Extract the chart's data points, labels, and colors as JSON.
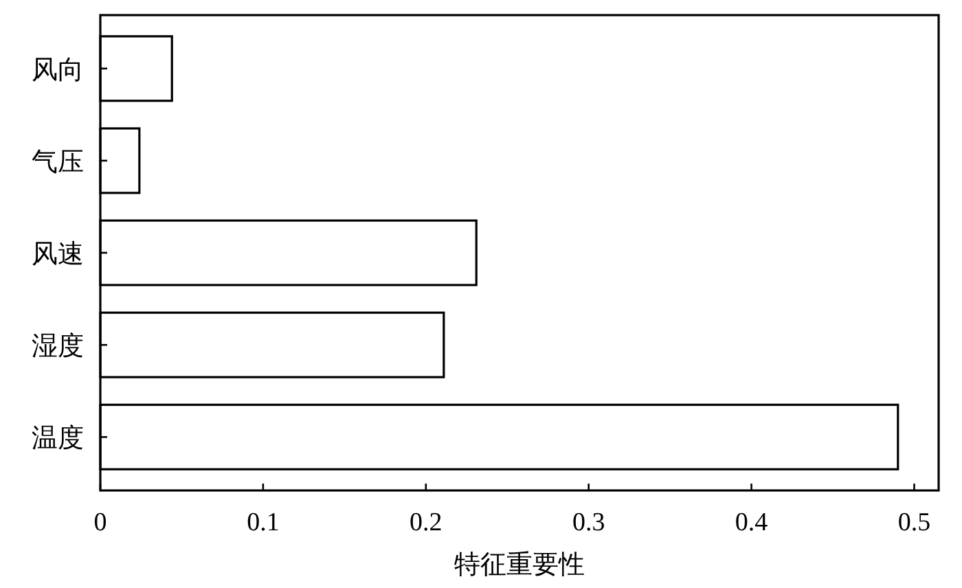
{
  "chart_data": {
    "type": "bar",
    "orientation": "horizontal",
    "xlabel": "特征重要性",
    "categories": [
      "风向",
      "气压",
      "风速",
      "湿度",
      "温度"
    ],
    "values": [
      0.044,
      0.024,
      0.231,
      0.211,
      0.49
    ],
    "color": "#ffffff",
    "xlim": [
      0,
      0.515
    ],
    "xticks": [
      0,
      0.1,
      0.2,
      0.3,
      0.4,
      0.5
    ],
    "grid": false
  }
}
